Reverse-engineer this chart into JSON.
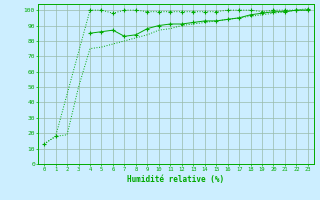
{
  "x": [
    0,
    1,
    2,
    3,
    4,
    5,
    6,
    7,
    8,
    9,
    10,
    11,
    12,
    13,
    14,
    15,
    16,
    17,
    18,
    19,
    20,
    21,
    22,
    23
  ],
  "line1_y": [
    13,
    18,
    null,
    null,
    100,
    100,
    98,
    100,
    100,
    99,
    99,
    99,
    99,
    99,
    99,
    99,
    100,
    100,
    100,
    99,
    100,
    100,
    100,
    101
  ],
  "line2_y": [
    null,
    null,
    null,
    null,
    85,
    86,
    87,
    83,
    84,
    88,
    90,
    91,
    91,
    92,
    93,
    93,
    94,
    95,
    97,
    98,
    99,
    99,
    100,
    100
  ],
  "line3_y": [
    13,
    18,
    19,
    50,
    75,
    76,
    78,
    80,
    82,
    84,
    87,
    88,
    90,
    91,
    92,
    93,
    94,
    95,
    96,
    97,
    98,
    99,
    100,
    100
  ],
  "bg_color": "#cceeff",
  "grid_color": "#99bbaa",
  "line_color": "#00aa00",
  "xlabel": "Humidité relative (%)",
  "yticks": [
    0,
    10,
    20,
    30,
    40,
    50,
    60,
    70,
    80,
    90,
    100
  ],
  "xlim": [
    -0.5,
    23.5
  ],
  "ylim": [
    0,
    104
  ],
  "figsize": [
    3.2,
    2.0
  ],
  "dpi": 100
}
